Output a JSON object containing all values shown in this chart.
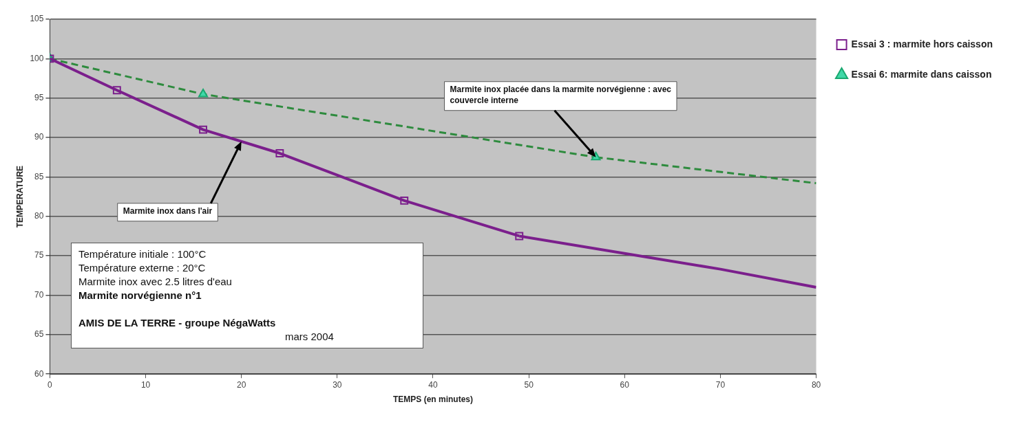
{
  "chart_data": {
    "type": "line",
    "xlabel": "TEMPS (en minutes)",
    "ylabel": "TEMPERATURE",
    "xlim": [
      0,
      80
    ],
    "xticks": [
      0,
      10,
      20,
      30,
      40,
      50,
      60,
      70,
      80
    ],
    "ylim": [
      60,
      105
    ],
    "yticks": [
      60,
      65,
      70,
      75,
      80,
      85,
      90,
      95,
      100,
      105
    ],
    "grid": "y",
    "legend": "right",
    "tick_labels": "xy",
    "series": [
      {
        "name": "Essai 3 : marmite hors caisson",
        "color": "#7b1f8c",
        "x": [
          0,
          7,
          16,
          24,
          37,
          49
        ],
        "values": [
          100,
          96,
          91,
          88,
          82,
          77.5
        ],
        "marker": "square",
        "line_style": "solid"
      },
      {
        "name": "Essai 6: marmite dans caisson",
        "color": "#2e8b3e",
        "x": [
          0,
          16,
          57
        ],
        "values": [
          100,
          95.5,
          87.5
        ],
        "marker": "triangle",
        "line_style": "dashed"
      },
      {
        "type": "line",
        "color": "#7b1f8c",
        "x": [
          49,
          60,
          70,
          80
        ],
        "values": [
          77.5,
          75.3,
          73.3,
          71
        ],
        "marker": "none",
        "line_style": "solid"
      },
      {
        "type": "line",
        "color": "#2e8b3e",
        "x": [
          57,
          80
        ],
        "values": [
          87.5,
          84.2
        ],
        "marker": "none",
        "line_style": "dashed"
      }
    ],
    "annotations": [
      {
        "text": "Marmite inox dans l'air",
        "x": 20,
        "y": 89.5
      },
      {
        "text": "Marmite inox placée dans la marmite norvégienne : avec couvercle interne",
        "x": 57,
        "y": 87.5
      },
      "Température initiale :  100°C",
      "Température externe : 20°C",
      "Marmite inox avec  2.5 litres d'eau",
      "Marmite norvégienne n°1",
      "AMIS DE LA TERRE - groupe NégaWatts",
      "mars 2004"
    ]
  }
}
